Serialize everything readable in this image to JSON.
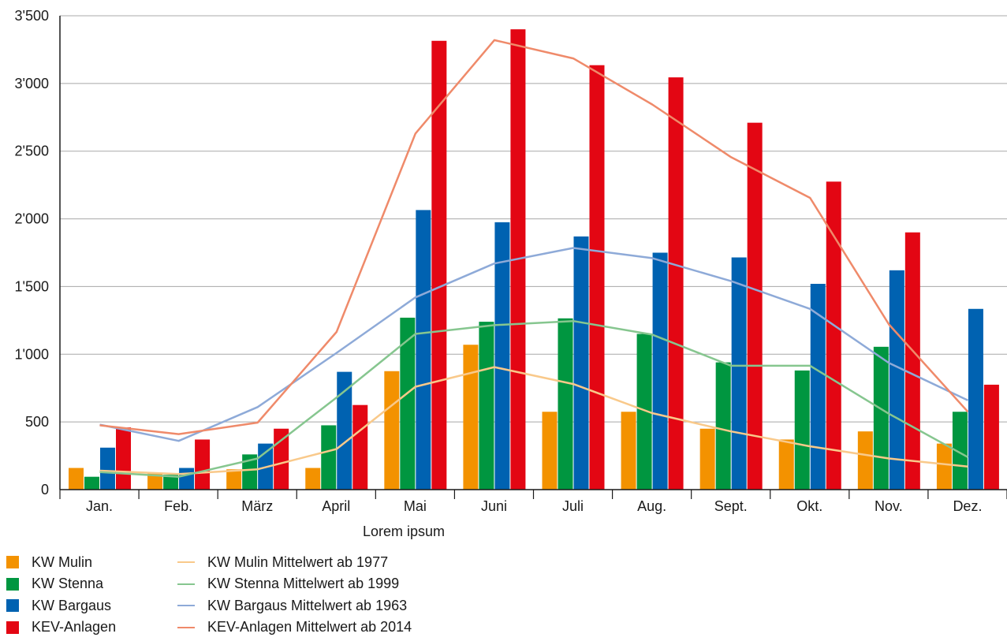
{
  "chart_data": {
    "type": "bar",
    "xlabel": "Lorem ipsum",
    "ylabel": "",
    "ylim": [
      0,
      3500
    ],
    "yticks": [
      0,
      500,
      1000,
      1500,
      2000,
      2500,
      3000,
      3500
    ],
    "ytick_labels": [
      "0",
      "500",
      "1'000",
      "1'500",
      "2'000",
      "2'500",
      "3'000",
      "3'500"
    ],
    "grid": true,
    "legend_position": "bottom-left",
    "categories": [
      "Jan.",
      "Feb.",
      "März",
      "April",
      "Mai",
      "Juni",
      "Juli",
      "Aug.",
      "Sept.",
      "Okt.",
      "Nov.",
      "Dez."
    ],
    "series": [
      {
        "name": "KW Mulin",
        "kind": "bar",
        "color": "#f39200",
        "values": [
          160,
          120,
          150,
          160,
          875,
          1070,
          575,
          575,
          450,
          370,
          430,
          340
        ]
      },
      {
        "name": "KW Stenna",
        "kind": "bar",
        "color": "#009640",
        "values": [
          95,
          110,
          260,
          475,
          1270,
          1240,
          1265,
          1150,
          940,
          880,
          1055,
          575
        ]
      },
      {
        "name": "KW Bargaus",
        "kind": "bar",
        "color": "#0062b1",
        "values": [
          310,
          160,
          340,
          870,
          2065,
          1975,
          1870,
          1750,
          1715,
          1520,
          1620,
          1335
        ]
      },
      {
        "name": "KEV-Anlagen",
        "kind": "bar",
        "color": "#e30613",
        "values": [
          460,
          370,
          450,
          625,
          3315,
          3400,
          3135,
          3045,
          2710,
          2275,
          1900,
          775
        ]
      },
      {
        "name": "KW Mulin Mittelwert ab 1977",
        "kind": "line",
        "color": "#f9c98a",
        "values": [
          140,
          115,
          150,
          300,
          760,
          905,
          780,
          565,
          430,
          320,
          230,
          170
        ]
      },
      {
        "name": "KW Stenna Mittelwert ab 1999",
        "kind": "line",
        "color": "#86c68f",
        "values": [
          130,
          95,
          230,
          680,
          1150,
          1215,
          1245,
          1145,
          915,
          915,
          560,
          240
        ]
      },
      {
        "name": "KW Bargaus Mittelwert ab 1963",
        "kind": "line",
        "color": "#8eaad8",
        "values": [
          480,
          360,
          610,
          1010,
          1420,
          1670,
          1785,
          1710,
          1540,
          1335,
          935,
          660
        ]
      },
      {
        "name": "KEV-Anlagen Mittelwert ab 2014",
        "kind": "line",
        "color": "#ef8a6a",
        "values": [
          475,
          410,
          495,
          1165,
          2630,
          3320,
          3185,
          2845,
          2455,
          2155,
          1220,
          575
        ]
      }
    ]
  }
}
